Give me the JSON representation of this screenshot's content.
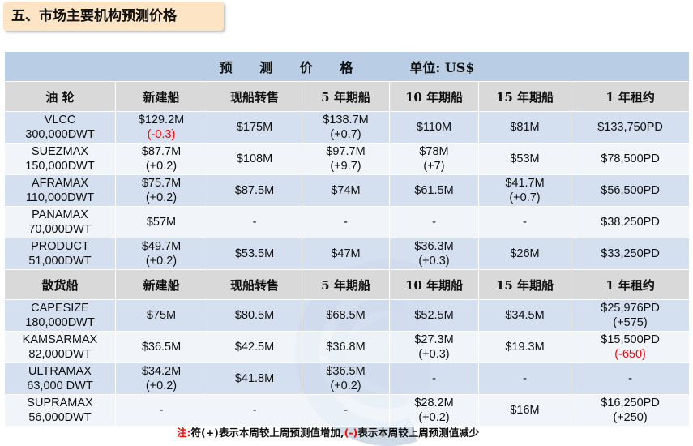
{
  "section_title": "五、市场主要机构预测价格",
  "table_title": "预 测 价 格",
  "unit_label": "单位: US$",
  "tanker": {
    "headers": [
      "油 轮",
      "新建船",
      "现船转售",
      "5 年期船",
      "10 年期船",
      "15 年期船",
      "1 年租约"
    ],
    "rows": [
      {
        "name": "VLCC",
        "dwt": "300,000DWT",
        "cells": [
          [
            "$129.2M",
            "(-0.3)"
          ],
          [
            "$175M",
            ""
          ],
          [
            "$138.7M",
            "(+0.7)"
          ],
          [
            "$110M",
            ""
          ],
          [
            "$81M",
            ""
          ],
          [
            "$133,750PD",
            ""
          ]
        ]
      },
      {
        "name": "SUEZMAX",
        "dwt": "150,000DWT",
        "cells": [
          [
            "$87.7M",
            "(+0.2)"
          ],
          [
            "$108M",
            ""
          ],
          [
            "$97.7M",
            "(+9.7)"
          ],
          [
            "$78M",
            "(+7)"
          ],
          [
            "$53M",
            ""
          ],
          [
            "$78,500PD",
            ""
          ]
        ]
      },
      {
        "name": "AFRAMAX",
        "dwt": "110,000DWT",
        "cells": [
          [
            "$75.7M",
            "(+0.2)"
          ],
          [
            "$87.5M",
            ""
          ],
          [
            "$74M",
            ""
          ],
          [
            "$61.5M",
            ""
          ],
          [
            "$41.7M",
            "(+0.7)"
          ],
          [
            "$56,500PD",
            ""
          ]
        ]
      },
      {
        "name": "PANAMAX",
        "dwt": "70,000DWT",
        "cells": [
          [
            "$57M",
            ""
          ],
          [
            "-",
            ""
          ],
          [
            "-",
            ""
          ],
          [
            "-",
            ""
          ],
          [
            "-",
            ""
          ],
          [
            "$38,250PD",
            ""
          ]
        ]
      },
      {
        "name": "PRODUCT",
        "dwt": "51,000DWT",
        "cells": [
          [
            "$49.7M",
            "(+0.2)"
          ],
          [
            "$53.5M",
            ""
          ],
          [
            "$47M",
            ""
          ],
          [
            "$36.3M",
            "(+0.3)"
          ],
          [
            "$26M",
            ""
          ],
          [
            "$33,250PD",
            ""
          ]
        ]
      }
    ]
  },
  "bulk": {
    "headers": [
      "散货船",
      "新建船",
      "现船转售",
      "5 年期船",
      "10 年期船",
      "15 年期船",
      "1 年租约"
    ],
    "rows": [
      {
        "name": "CAPESIZE",
        "dwt": "180,000DWT",
        "cells": [
          [
            "$75M",
            ""
          ],
          [
            "$80.5M",
            ""
          ],
          [
            "$68.5M",
            ""
          ],
          [
            "$52.5M",
            ""
          ],
          [
            "$34.5M",
            ""
          ],
          [
            "$25,976PD",
            "(+575)"
          ]
        ]
      },
      {
        "name": "KAMSARMAX",
        "dwt": "82,000DWT",
        "cells": [
          [
            "$36.5M",
            ""
          ],
          [
            "$42.5M",
            ""
          ],
          [
            "$36.8M",
            ""
          ],
          [
            "$27.3M",
            "(+0.3)"
          ],
          [
            "$19.3M",
            ""
          ],
          [
            "$15,500PD",
            "(-650)"
          ]
        ]
      },
      {
        "name": "ULTRAMAX",
        "dwt": "63,000 DWT",
        "cells": [
          [
            "$34.2M",
            "(+0.2)"
          ],
          [
            "$41.8M",
            ""
          ],
          [
            "$36.5M",
            "(+0.2)"
          ],
          [
            "-",
            ""
          ],
          [
            "-",
            ""
          ],
          [
            "-",
            ""
          ]
        ]
      },
      {
        "name": "SUPRAMAX",
        "dwt": "56,000DWT",
        "cells": [
          [
            "-",
            ""
          ],
          [
            "-",
            ""
          ],
          [
            "-",
            ""
          ],
          [
            "$28.2M",
            "(+0.2)"
          ],
          [
            "$16M",
            ""
          ],
          [
            "$16,250PD",
            "(+250)"
          ]
        ]
      }
    ]
  },
  "footnote": {
    "prefix": "注:",
    "text1": "符(+)表示本周较上周预测值增加,",
    "neg_sign": "(-)",
    "text2": "表示本周较上周预测值减少"
  },
  "colors": {
    "header_blue": "#b9cde4",
    "row_blue": "#cfdced",
    "col_header_gray": "#d9d9d9",
    "negative": "#ff0000",
    "title_bg": "#fde4c4"
  }
}
